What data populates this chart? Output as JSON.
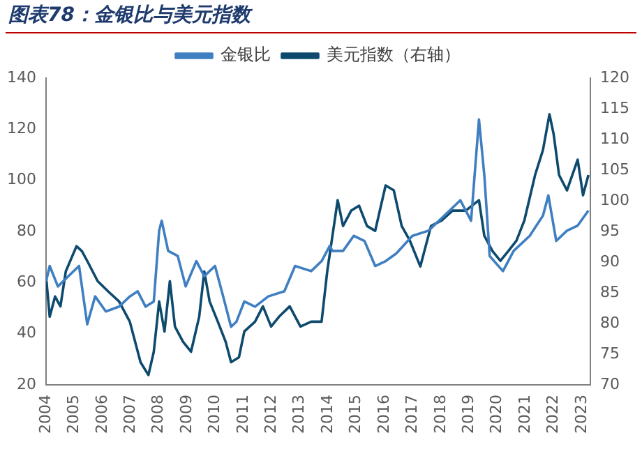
{
  "chart_data": {
    "type": "line",
    "title": "图表78：金银比与美元指数",
    "xlim": [
      2004,
      2023.3
    ],
    "xticks": [
      2004,
      2005,
      2006,
      2007,
      2008,
      2009,
      2010,
      2011,
      2012,
      2013,
      2014,
      2015,
      2016,
      2017,
      2018,
      2019,
      2020,
      2021,
      2022,
      2023
    ],
    "ylim": [
      20,
      140
    ],
    "yticks": [
      20,
      40,
      60,
      80,
      100,
      120,
      140
    ],
    "y2lim": [
      70,
      120
    ],
    "y2ticks": [
      70,
      75,
      80,
      85,
      90,
      95,
      100,
      105,
      110,
      115,
      120
    ],
    "grid": false,
    "legend": "top",
    "marker": "none",
    "line_style": "solid",
    "series": [
      {
        "name": "金银比",
        "color": "#3f7fc1",
        "x": [
          2004.0,
          2004.13,
          2004.42,
          2004.79,
          2005.17,
          2005.46,
          2005.74,
          2006.12,
          2006.59,
          2006.97,
          2007.25,
          2007.53,
          2007.82,
          2008.01,
          2008.1,
          2008.33,
          2008.67,
          2008.95,
          2009.33,
          2009.61,
          2009.99,
          2010.28,
          2010.56,
          2010.75,
          2011.03,
          2011.41,
          2011.88,
          2012.45,
          2012.83,
          2013.4,
          2013.77,
          2014.06,
          2014.15,
          2014.53,
          2014.91,
          2015.29,
          2015.67,
          2016.04,
          2016.42,
          2016.99,
          2017.56,
          2018.12,
          2018.69,
          2019.07,
          2019.35,
          2019.54,
          2019.73,
          2020.2,
          2020.58,
          2021.15,
          2021.62,
          2021.81,
          2022.09,
          2022.47,
          2022.85,
          2023.23
        ],
        "values": [
          60.5,
          66.5,
          58.5,
          62.5,
          66.5,
          43.7,
          54.6,
          48.7,
          50.6,
          54.6,
          56.6,
          50.6,
          52.6,
          80.3,
          84.2,
          72.4,
          70.4,
          58.5,
          68.4,
          62.5,
          66.5,
          54.6,
          42.7,
          44.7,
          52.6,
          50.6,
          54.6,
          56.6,
          66.5,
          64.5,
          68.4,
          74.4,
          72.4,
          72.4,
          78.3,
          76.3,
          66.5,
          68.4,
          71.4,
          78.3,
          80.3,
          86.2,
          92.2,
          84.2,
          123.8,
          102.0,
          70.4,
          64.5,
          72.4,
          78.3,
          86.2,
          94.1,
          76.3,
          80.3,
          82.3,
          88.2
        ]
      },
      {
        "name": "美元指数（右轴）",
        "color": "#0d4a6e",
        "axis": "y2",
        "x": [
          2004.0,
          2004.13,
          2004.32,
          2004.51,
          2004.7,
          2005.08,
          2005.27,
          2005.46,
          2005.83,
          2006.21,
          2006.59,
          2006.97,
          2007.35,
          2007.63,
          2007.82,
          2008.01,
          2008.2,
          2008.39,
          2008.57,
          2008.86,
          2009.14,
          2009.43,
          2009.61,
          2009.8,
          2010.09,
          2010.37,
          2010.56,
          2010.84,
          2011.03,
          2011.41,
          2011.69,
          2011.98,
          2012.26,
          2012.64,
          2013.02,
          2013.4,
          2013.77,
          2013.97,
          2014.34,
          2014.53,
          2014.82,
          2015.1,
          2015.38,
          2015.67,
          2016.04,
          2016.33,
          2016.61,
          2016.9,
          2017.27,
          2017.65,
          2018.03,
          2018.41,
          2018.88,
          2019.35,
          2019.54,
          2019.83,
          2020.11,
          2020.39,
          2020.68,
          2020.96,
          2021.34,
          2021.62,
          2021.85,
          2022.0,
          2022.19,
          2022.47,
          2022.85,
          2023.04,
          2023.23
        ],
        "values": [
          87.7,
          81.1,
          84.4,
          82.8,
          88.5,
          92.6,
          91.8,
          90.2,
          86.9,
          85.2,
          83.6,
          80.3,
          73.7,
          71.6,
          75.4,
          83.6,
          78.7,
          86.9,
          79.5,
          77.0,
          75.4,
          81.1,
          88.5,
          83.6,
          80.3,
          77.0,
          73.7,
          74.5,
          78.7,
          80.3,
          82.8,
          79.5,
          81.1,
          82.8,
          79.5,
          80.3,
          80.3,
          88.5,
          100.1,
          95.9,
          98.4,
          99.2,
          95.9,
          95.1,
          102.5,
          101.7,
          95.9,
          93.5,
          89.3,
          95.9,
          96.8,
          98.4,
          98.4,
          100.1,
          94.3,
          91.8,
          90.2,
          91.8,
          93.5,
          96.8,
          104.2,
          108.3,
          114.1,
          110.8,
          104.2,
          101.7,
          106.7,
          100.9,
          104.2
        ]
      }
    ]
  }
}
